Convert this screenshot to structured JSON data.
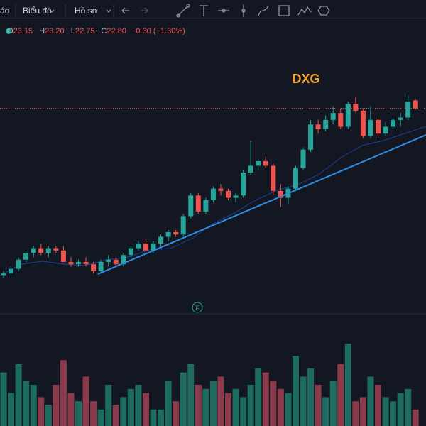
{
  "toolbar": {
    "items": [
      "áo",
      "Biểu đồ",
      "Hồ sơ"
    ]
  },
  "legend": {
    "o": "O",
    "open": "23.15",
    "h": "H",
    "high": "23.20",
    "l": "L",
    "low": "22.75",
    "c": "C",
    "close": "22.80",
    "change": "−0.30 (−1.30%)"
  },
  "chart_data": {
    "type": "candlestick",
    "title": "DXG",
    "marker": "F",
    "ylim": [
      13.9,
      26.6
    ],
    "colors": {
      "up": "#26a69a",
      "down": "#ef5350",
      "title": "#f7a325"
    },
    "candles": {
      "open": [
        15.5,
        15.6,
        15.8,
        16.2,
        16.5,
        16.7,
        16.5,
        16.7,
        16.6,
        16.1,
        16.0,
        16.1,
        16.0,
        15.7,
        16.1,
        16.2,
        16.0,
        16.4,
        16.7,
        16.9,
        16.6,
        16.9,
        17.2,
        17.4,
        17.3,
        18.1,
        19.0,
        18.3,
        18.8,
        19.3,
        19.2,
        18.9,
        19.0,
        20.0,
        20.3,
        20.5,
        20.3,
        19.2,
        18.9,
        19.3,
        20.2,
        21.0,
        22.1,
        21.9,
        22.3,
        22.6,
        22.0,
        23.0,
        22.7,
        21.6,
        22.3,
        21.7,
        22.0,
        22.3,
        22.4,
        23.15
      ],
      "high": [
        15.7,
        15.9,
        16.3,
        16.6,
        16.8,
        16.9,
        16.8,
        16.8,
        16.8,
        16.3,
        16.2,
        16.3,
        16.1,
        16.2,
        16.4,
        16.3,
        16.5,
        16.8,
        17.0,
        17.1,
        17.0,
        17.3,
        17.5,
        17.5,
        18.2,
        19.1,
        19.1,
        18.9,
        19.4,
        19.5,
        19.3,
        19.1,
        20.1,
        21.4,
        20.6,
        20.7,
        20.4,
        19.5,
        19.4,
        20.3,
        21.1,
        22.3,
        22.3,
        22.5,
        22.9,
        22.8,
        23.1,
        23.3,
        22.8,
        22.9,
        22.4,
        22.2,
        22.4,
        22.6,
        23.4,
        23.2
      ],
      "low": [
        15.4,
        15.5,
        15.7,
        16.1,
        16.3,
        16.4,
        16.3,
        16.5,
        16.1,
        15.9,
        15.9,
        15.9,
        15.6,
        15.6,
        15.9,
        15.9,
        15.9,
        16.3,
        16.6,
        16.5,
        16.5,
        16.8,
        17.0,
        17.2,
        17.2,
        18.0,
        18.2,
        18.2,
        18.7,
        19.0,
        18.8,
        18.7,
        18.9,
        19.9,
        20.1,
        20.2,
        19.0,
        18.5,
        18.6,
        19.2,
        20.1,
        20.9,
        21.7,
        21.8,
        22.1,
        21.9,
        21.9,
        22.6,
        21.5,
        21.5,
        21.5,
        21.6,
        21.9,
        22.0,
        22.3,
        22.75
      ],
      "close": [
        15.6,
        15.8,
        16.2,
        16.5,
        16.7,
        16.5,
        16.7,
        16.6,
        16.1,
        16.0,
        16.1,
        16.0,
        15.7,
        16.1,
        16.2,
        16.0,
        16.4,
        16.7,
        16.9,
        16.6,
        16.9,
        17.2,
        17.4,
        17.3,
        18.1,
        19.0,
        18.3,
        18.8,
        19.3,
        19.2,
        18.9,
        19.0,
        20.0,
        20.3,
        20.5,
        20.3,
        19.2,
        18.9,
        19.3,
        20.2,
        21.0,
        22.1,
        21.9,
        22.3,
        22.6,
        22.0,
        23.0,
        22.7,
        21.6,
        22.3,
        21.7,
        22.0,
        22.3,
        22.4,
        23.1,
        22.8
      ]
    },
    "volume": {
      "ylim": [
        0,
        50
      ],
      "colors": {
        "up": "#1e6b5f",
        "down": "#8a3a4a"
      },
      "values": [
        26,
        16,
        30,
        22,
        20,
        14,
        10,
        20,
        32,
        16,
        12,
        24,
        12,
        8,
        20,
        10,
        14,
        18,
        20,
        16,
        8,
        8,
        22,
        12,
        26,
        30,
        20,
        18,
        22,
        24,
        16,
        18,
        14,
        20,
        28,
        26,
        22,
        18,
        16,
        34,
        24,
        28,
        20,
        14,
        22,
        30,
        40,
        12,
        14,
        24,
        20,
        14,
        12,
        16,
        18,
        8
      ]
    }
  }
}
